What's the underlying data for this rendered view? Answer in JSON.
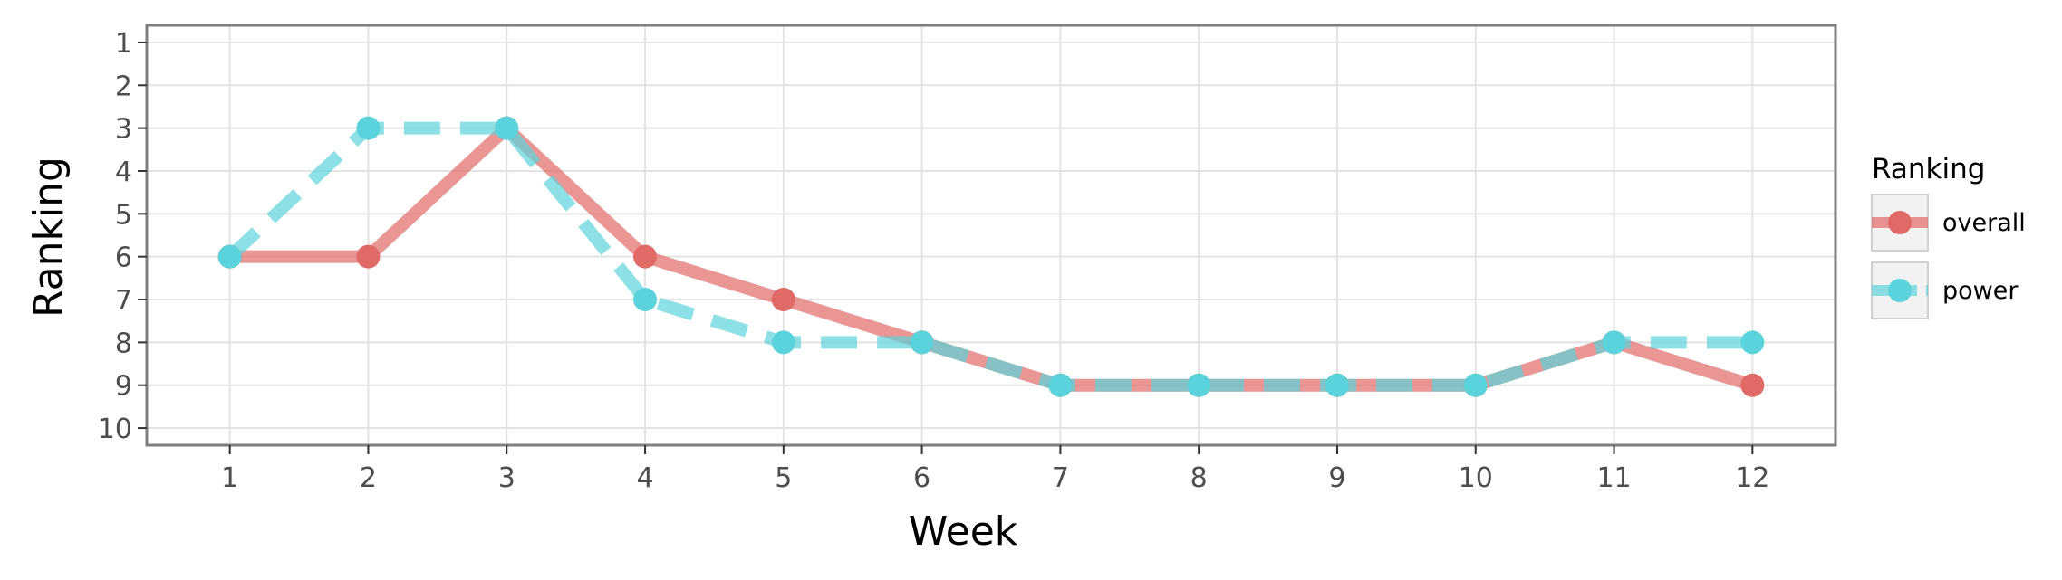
{
  "chart_data": {
    "type": "line",
    "xlabel": "Week",
    "ylabel": "Ranking",
    "x": [
      1,
      2,
      3,
      4,
      5,
      6,
      7,
      8,
      9,
      10,
      11,
      12
    ],
    "xlim": [
      0.4,
      12.6
    ],
    "ylim": [
      10.4,
      0.6
    ],
    "y_reversed": true,
    "yticks": [
      1,
      2,
      3,
      4,
      5,
      6,
      7,
      8,
      9,
      10
    ],
    "grid": true,
    "legend": {
      "title": "Ranking",
      "position": "right"
    },
    "series": [
      {
        "name": "overall",
        "color": "#e06a66",
        "dashed": false,
        "values": [
          6,
          6,
          3,
          6,
          7,
          8,
          9,
          9,
          9,
          9,
          8,
          9
        ]
      },
      {
        "name": "power",
        "color": "#5bd3dc",
        "dashed": true,
        "values": [
          6,
          3,
          3,
          7,
          8,
          8,
          9,
          9,
          9,
          9,
          8,
          8
        ]
      }
    ]
  }
}
